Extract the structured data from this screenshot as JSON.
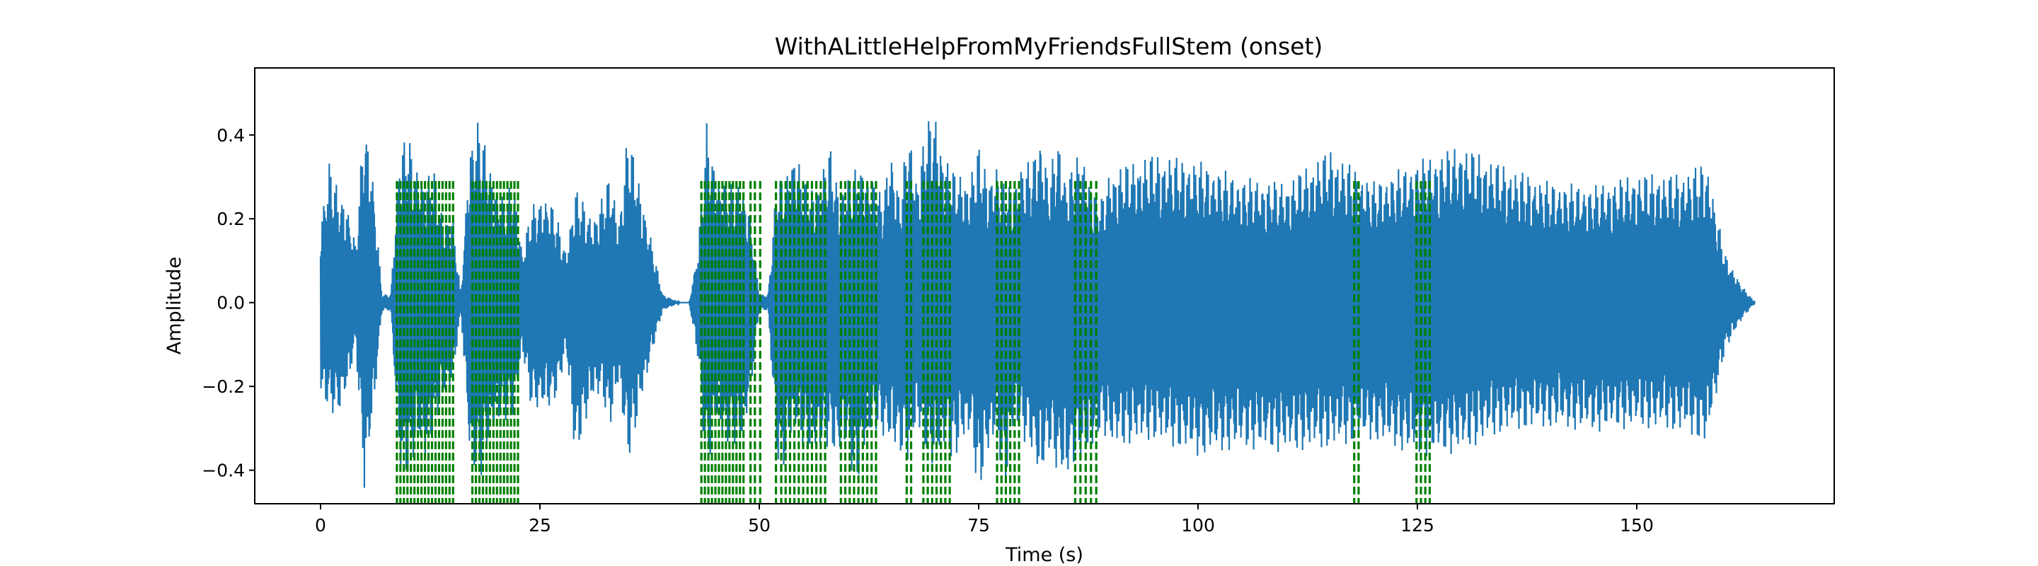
{
  "chart_data": {
    "type": "line",
    "title": "WithALittleHelpFromMyFriendsFullStem (onset)",
    "xlabel": "Time (s)",
    "ylabel": "Amplitude",
    "xlim": [
      -7.5,
      172.5
    ],
    "ylim": [
      -0.48,
      0.56
    ],
    "xticks": [
      0,
      25,
      50,
      75,
      100,
      125,
      150
    ],
    "xtick_labels": [
      "0",
      "25",
      "50",
      "75",
      "100",
      "125",
      "150"
    ],
    "yticks": [
      -0.4,
      -0.2,
      0.0,
      0.2,
      0.4
    ],
    "ytick_labels": [
      "−0.4",
      "−0.2",
      "0.0",
      "0.2",
      "0.4"
    ],
    "grid": false,
    "series": [
      {
        "style": "waveform",
        "color": "#1f77b4",
        "x": [
          0,
          1,
          2,
          3,
          4,
          5,
          6,
          7,
          8,
          9,
          10,
          11,
          12,
          13,
          14,
          15,
          16,
          17,
          18,
          19,
          20,
          21,
          22,
          23,
          24,
          25,
          26,
          27,
          28,
          29,
          30,
          31,
          32,
          33,
          34,
          35,
          36,
          37,
          38,
          39,
          40,
          41,
          42,
          43,
          44,
          45,
          46,
          47,
          48,
          49,
          50,
          51,
          52,
          53,
          54,
          55,
          56,
          57,
          58,
          59,
          60,
          61,
          62,
          63,
          64,
          65,
          66,
          67,
          68,
          69,
          70,
          71,
          72,
          73,
          74,
          75,
          76,
          77,
          78,
          79,
          80,
          81,
          82,
          83,
          84,
          85,
          86,
          87,
          88,
          89,
          90,
          95,
          100,
          105,
          110,
          115,
          120,
          125,
          130,
          135,
          140,
          145,
          150,
          155,
          158,
          160,
          162,
          163.5
        ],
        "envelope_max": [
          0.2,
          0.34,
          0.27,
          0.24,
          0.14,
          0.46,
          0.3,
          0.02,
          0.02,
          0.38,
          0.4,
          0.33,
          0.3,
          0.32,
          0.2,
          0.22,
          0.02,
          0.39,
          0.44,
          0.36,
          0.28,
          0.25,
          0.3,
          0.12,
          0.23,
          0.25,
          0.26,
          0.2,
          0.12,
          0.28,
          0.24,
          0.2,
          0.25,
          0.31,
          0.2,
          0.41,
          0.33,
          0.22,
          0.12,
          0.02,
          0.01,
          0.0,
          0.0,
          0.13,
          0.43,
          0.32,
          0.3,
          0.28,
          0.3,
          0.21,
          0.02,
          0.02,
          0.3,
          0.3,
          0.38,
          0.3,
          0.28,
          0.3,
          0.38,
          0.28,
          0.3,
          0.32,
          0.33,
          0.3,
          0.25,
          0.38,
          0.25,
          0.42,
          0.3,
          0.43,
          0.46,
          0.36,
          0.32,
          0.31,
          0.3,
          0.38,
          0.31,
          0.33,
          0.28,
          0.3,
          0.33,
          0.34,
          0.41,
          0.3,
          0.4,
          0.3,
          0.35,
          0.34,
          0.29,
          0.25,
          0.32,
          0.36,
          0.34,
          0.3,
          0.29,
          0.37,
          0.29,
          0.34,
          0.38,
          0.33,
          0.29,
          0.28,
          0.31,
          0.31,
          0.34,
          0.12,
          0.04,
          0.0
        ],
        "envelope_min": [
          -0.23,
          -0.26,
          -0.27,
          -0.22,
          -0.1,
          -0.46,
          -0.28,
          -0.02,
          -0.02,
          -0.4,
          -0.42,
          -0.35,
          -0.38,
          -0.3,
          -0.24,
          -0.2,
          -0.02,
          -0.38,
          -0.44,
          -0.35,
          -0.3,
          -0.28,
          -0.28,
          -0.12,
          -0.25,
          -0.26,
          -0.26,
          -0.22,
          -0.12,
          -0.38,
          -0.3,
          -0.24,
          -0.22,
          -0.3,
          -0.2,
          -0.38,
          -0.3,
          -0.2,
          -0.1,
          -0.02,
          -0.01,
          0.0,
          0.0,
          -0.14,
          -0.42,
          -0.3,
          -0.34,
          -0.34,
          -0.35,
          -0.22,
          -0.02,
          -0.02,
          -0.38,
          -0.4,
          -0.3,
          -0.35,
          -0.37,
          -0.36,
          -0.34,
          -0.38,
          -0.35,
          -0.45,
          -0.37,
          -0.3,
          -0.32,
          -0.35,
          -0.36,
          -0.38,
          -0.3,
          -0.36,
          -0.4,
          -0.35,
          -0.38,
          -0.35,
          -0.32,
          -0.46,
          -0.38,
          -0.32,
          -0.45,
          -0.3,
          -0.33,
          -0.35,
          -0.45,
          -0.35,
          -0.41,
          -0.44,
          -0.38,
          -0.38,
          -0.36,
          -0.3,
          -0.35,
          -0.33,
          -0.37,
          -0.35,
          -0.36,
          -0.35,
          -0.33,
          -0.37,
          -0.36,
          -0.31,
          -0.3,
          -0.31,
          -0.3,
          -0.31,
          -0.34,
          -0.12,
          -0.04,
          0.0
        ]
      },
      {
        "style": "onset-markers",
        "color": "#008000",
        "top": 0.29,
        "x": [
          8.7,
          9.1,
          9.5,
          9.9,
          10.3,
          10.7,
          11.1,
          11.5,
          11.9,
          12.3,
          12.7,
          13.1,
          13.5,
          13.9,
          14.3,
          14.7,
          15.1,
          17.3,
          17.7,
          18.1,
          18.5,
          18.9,
          19.3,
          19.7,
          20.1,
          20.5,
          20.9,
          21.3,
          21.7,
          22.1,
          22.5,
          43.4,
          43.8,
          44.2,
          44.6,
          45.0,
          45.4,
          45.8,
          46.2,
          46.6,
          47.0,
          47.4,
          47.8,
          48.2,
          49.0,
          49.5,
          50.1,
          51.9,
          52.5,
          53.0,
          53.5,
          54.0,
          54.5,
          55.0,
          55.5,
          56.0,
          56.5,
          57.0,
          57.5,
          59.3,
          59.8,
          60.3,
          60.8,
          61.3,
          61.8,
          62.3,
          62.8,
          63.3,
          66.8,
          67.3,
          68.7,
          69.2,
          69.7,
          70.2,
          70.7,
          71.2,
          71.7,
          77.1,
          77.6,
          78.1,
          78.6,
          79.1,
          79.6,
          86.0,
          86.6,
          87.2,
          87.8,
          88.4,
          117.8,
          118.3,
          124.9,
          125.4,
          125.9,
          126.4
        ]
      }
    ]
  }
}
